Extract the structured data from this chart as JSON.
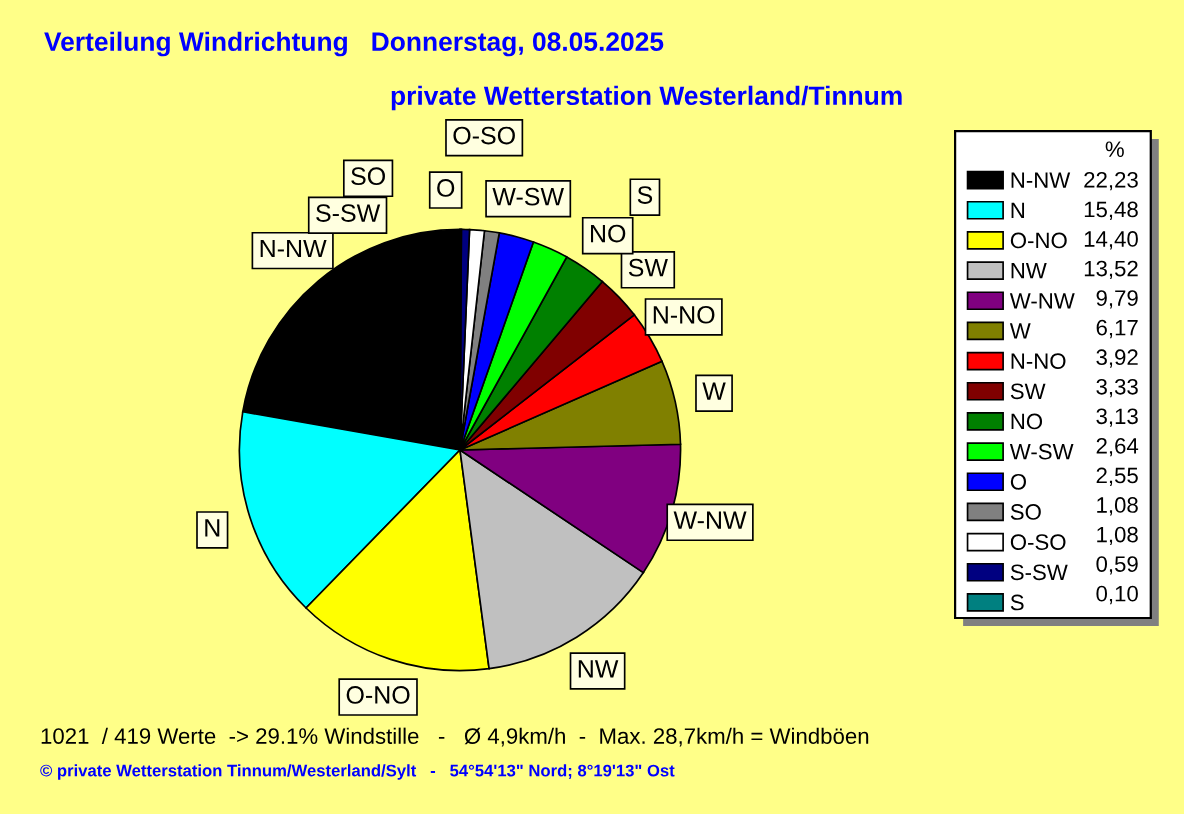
{
  "chart_data": {
    "type": "pie",
    "title": "Verteilung Windrichtung   Donnerstag, 08.05.2025",
    "subtitle": "private Wetterstation Westerland/Tinnum",
    "legend_title": "%",
    "categories": [
      "N-NW",
      "N",
      "O-NO",
      "NW",
      "W-NW",
      "W",
      "N-NO",
      "SW",
      "NO",
      "W-SW",
      "O",
      "SO",
      "O-SO",
      "S-SW",
      "S"
    ],
    "values": [
      22.23,
      15.48,
      14.4,
      13.52,
      9.79,
      6.17,
      3.92,
      3.33,
      3.13,
      2.64,
      2.55,
      1.08,
      1.08,
      0.59,
      0.1
    ],
    "value_labels": [
      "22,23",
      "15,48",
      "14,40",
      "13,52",
      "9,79",
      "6,17",
      "3,92",
      "3,33",
      "3,13",
      "2,64",
      "2,55",
      "1,08",
      "1,08",
      "0,59",
      "0,10"
    ],
    "colors": [
      "#000000",
      "#00ffff",
      "#ffff00",
      "#c0c0c0",
      "#800080",
      "#808000",
      "#ff0000",
      "#800000",
      "#008000",
      "#00ff00",
      "#0000ff",
      "#808080",
      "#ffffff",
      "#000080",
      "#008080"
    ],
    "legend": "right",
    "annotations": [
      "1021  / 419 Werte  -> 29.1% Windstille   -   Ø 4,9km/h  -  Max. 28,7km/h = Windböen",
      "© private Wetterstation Tinnum/Westerland/Sylt   -   54°54'13\" Nord; 8°19'13\" Ost"
    ]
  }
}
